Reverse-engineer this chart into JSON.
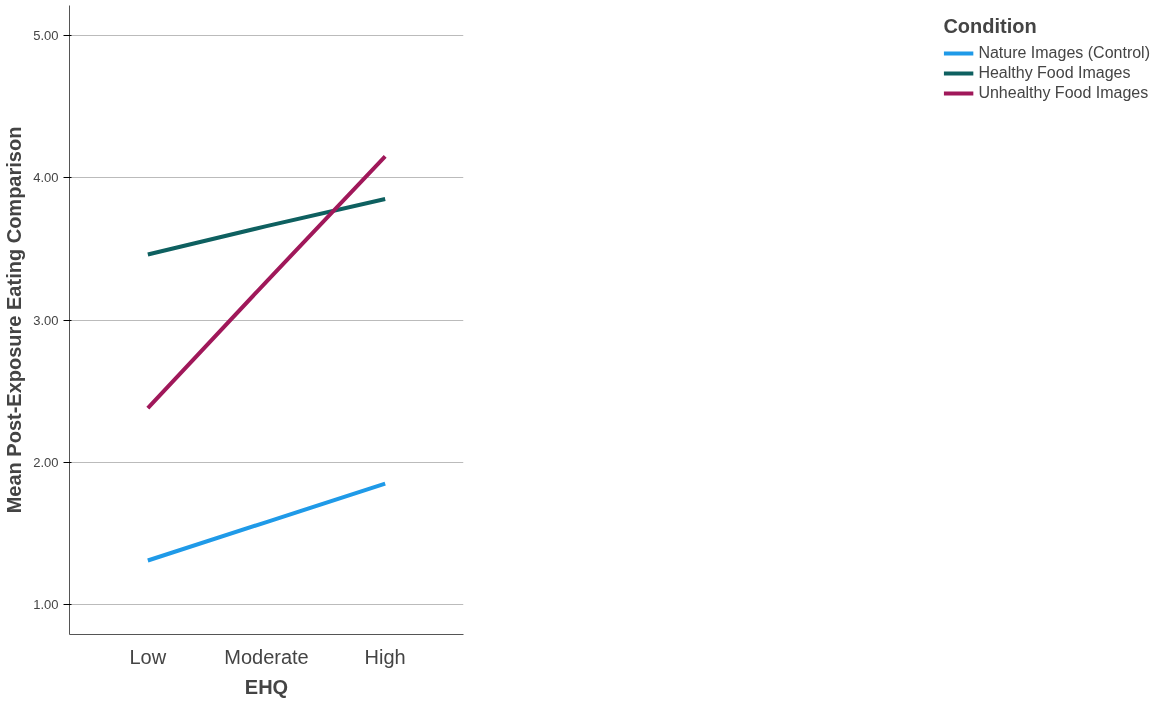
{
  "chart_data": {
    "type": "line",
    "xlabel": "EHQ",
    "ylabel": "Mean Post-Exposure Eating Comparison",
    "legend_title": "Condition",
    "categories": [
      "Low",
      "Moderate",
      "High"
    ],
    "series": [
      {
        "name": "Nature Images (Control)",
        "color": "#1f9ae8",
        "values": [
          1.31,
          1.58,
          1.85
        ]
      },
      {
        "name": "Healthy Food Images",
        "color": "#0e6060",
        "values": [
          3.46,
          3.66,
          3.85
        ]
      },
      {
        "name": "Unhealthy Food Images",
        "color": "#a0185a",
        "values": [
          2.38,
          3.27,
          4.15
        ]
      }
    ],
    "ylim": [
      0.79,
      5.21
    ],
    "yticks": [
      {
        "value": 1,
        "label": "1.00"
      },
      {
        "value": 2,
        "label": "2.00"
      },
      {
        "value": 3,
        "label": "3.00"
      },
      {
        "value": 4,
        "label": "4.00"
      },
      {
        "value": 5,
        "label": "5.00"
      }
    ],
    "grid": "y",
    "legend": "top right",
    "marker": "none",
    "line_style": "solid"
  }
}
